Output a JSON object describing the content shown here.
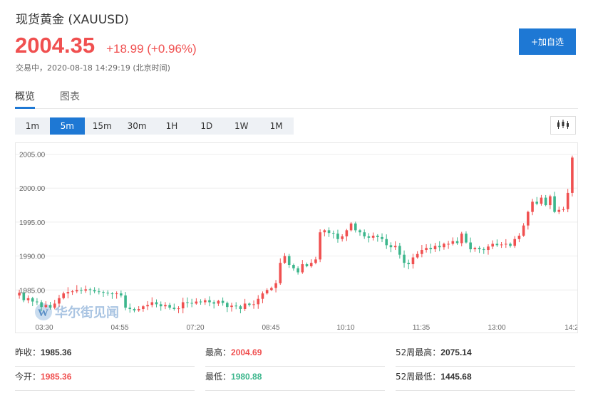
{
  "header": {
    "title": "现货黄金 (XAUUSD)",
    "price": "2004.35",
    "change": "+18.99 (+0.96%)",
    "status": "交易中，2020-08-18 14:29:19 (北京时间)",
    "add_button": "+加自选"
  },
  "tabs": [
    {
      "label": "概览",
      "active": true
    },
    {
      "label": "图表",
      "active": false
    }
  ],
  "periods": [
    "1m",
    "5m",
    "15m",
    "30m",
    "1H",
    "1D",
    "1W",
    "1M"
  ],
  "active_period": "5m",
  "watermark": "华尔街见闻",
  "colors": {
    "up": "#f05050",
    "down": "#3cb68c",
    "accent": "#1e78d4"
  },
  "stats": [
    [
      {
        "label": "昨收：",
        "value": "1985.36",
        "tone": "neutral"
      },
      {
        "label": "最高：",
        "value": "2004.69",
        "tone": "up"
      },
      {
        "label": "52周最高：",
        "value": "2075.14",
        "tone": "neutral"
      }
    ],
    [
      {
        "label": "今开：",
        "value": "1985.36",
        "tone": "up"
      },
      {
        "label": "最低：",
        "value": "1980.88",
        "tone": "down"
      },
      {
        "label": "52周最低：",
        "value": "1445.68",
        "tone": "neutral"
      }
    ]
  ],
  "chart_data": {
    "type": "candlestick",
    "interval": "5m",
    "ylim": [
      1980,
      2006
    ],
    "y_ticks": [
      "2005.00",
      "2000.00",
      "1995.00",
      "1990.00",
      "1985.00"
    ],
    "x_ticks": [
      "03:30",
      "04:55",
      "07:20",
      "08:45",
      "10:10",
      "11:35",
      "13:00",
      "14:2"
    ],
    "grid": true,
    "series": [
      {
        "name": "XAUUSD",
        "values": [
          1984.6,
          1983.5,
          1983.8,
          1983.3,
          1983.2,
          1982.5,
          1982.8,
          1982.4,
          1983.0,
          1983.8,
          1984.5,
          1984.7,
          1984.8,
          1985.0,
          1984.9,
          1985.1,
          1985.0,
          1984.8,
          1984.7,
          1984.6,
          1984.5,
          1984.4,
          1984.5,
          1984.2,
          1982.4,
          1982.2,
          1982.0,
          1982.2,
          1982.6,
          1982.8,
          1983.2,
          1982.9,
          1982.6,
          1982.8,
          1982.4,
          1982.2,
          1982.3,
          1983.2,
          1983.1,
          1983.0,
          1983.3,
          1983.2,
          1983.5,
          1983.2,
          1983.0,
          1983.4,
          1983.1,
          1982.5,
          1982.7,
          1982.6,
          1982.2,
          1983.0,
          1982.8,
          1982.9,
          1983.7,
          1984.5,
          1985.0,
          1985.3,
          1986.0,
          1989.0,
          1990.0,
          1988.7,
          1988.2,
          1987.6,
          1988.8,
          1988.5,
          1989.0,
          1989.5,
          1993.5,
          1993.8,
          1993.4,
          1993.3,
          1992.5,
          1992.9,
          1993.8,
          1994.8,
          1993.8,
          1993.5,
          1992.9,
          1992.7,
          1993.0,
          1992.8,
          1992.5,
          1991.6,
          1991.3,
          1991.5,
          1990.2,
          1989.0,
          1988.8,
          1989.8,
          1990.3,
          1990.9,
          1991.2,
          1991.0,
          1991.5,
          1991.3,
          1991.8,
          1991.8,
          1992.2,
          1991.9,
          1993.3,
          1992.0,
          1991.0,
          1991.2,
          1991.0,
          1990.9,
          1991.4,
          1991.8,
          1991.6,
          1991.7,
          1991.8,
          1991.5,
          1992.5,
          1993.0,
          1994.5,
          1996.5,
          1998.0,
          1997.7,
          1998.6,
          1997.5,
          1998.8,
          1996.5,
          1996.8,
          1996.9,
          1999.3,
          2004.5
        ]
      }
    ]
  }
}
